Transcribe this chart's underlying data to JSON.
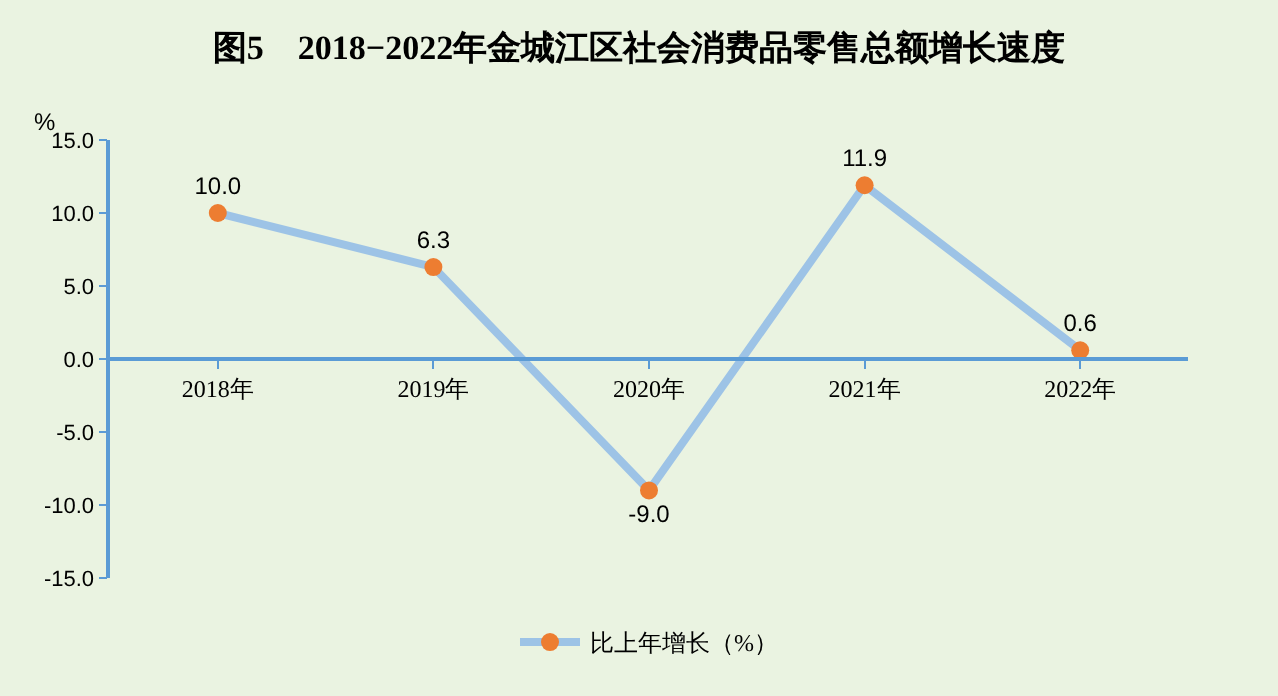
{
  "chart_data": {
    "type": "line",
    "title": "图5　2018−2022年金城江区社会消费品零售总额增长速度",
    "ylabel": "%",
    "categories": [
      "2018年",
      "2019年",
      "2020年",
      "2021年",
      "2022年"
    ],
    "series": [
      {
        "name": "比上年增长（%）",
        "color": "#9dc3e6",
        "colors": [
          "#ed7d31",
          "#ed7d31",
          "#ed7d31",
          "#ed7d31",
          "#ed7d31"
        ],
        "values": [
          10.0,
          6.3,
          -9.0,
          11.9,
          0.6
        ],
        "value_labels": [
          "10.0",
          "6.3",
          "-9.0",
          "11.9",
          "0.6"
        ]
      }
    ],
    "ylim": [
      -15,
      15
    ],
    "yticks": [
      {
        "value": -15,
        "label": "-15.0"
      },
      {
        "value": -10,
        "label": "-10.0"
      },
      {
        "value": -5,
        "label": "-5.0"
      },
      {
        "value": 0,
        "label": "0.0"
      },
      {
        "value": 5,
        "label": "5.0"
      },
      {
        "value": 10,
        "label": "10.0"
      },
      {
        "value": 15,
        "label": "15.0"
      }
    ],
    "marker": "circle",
    "line_style": "solid",
    "grid": false,
    "legend": "bottom"
  }
}
